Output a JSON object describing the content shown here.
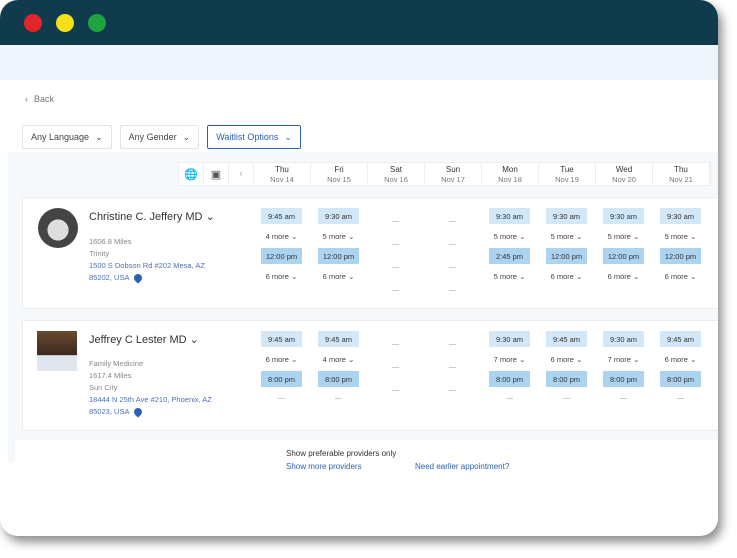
{
  "window": {
    "controls": [
      "#e0252b",
      "#f3e01a",
      "#1fa33f"
    ]
  },
  "nav": {
    "back": "Back"
  },
  "filters": [
    "Any Language",
    "Any Gender",
    "Waitlist Options"
  ],
  "days": [
    {
      "name": "Thu",
      "date": "Nov 14"
    },
    {
      "name": "Fri",
      "date": "Nov 15"
    },
    {
      "name": "Sat",
      "date": "Nov 16"
    },
    {
      "name": "Sun",
      "date": "Nov 17"
    },
    {
      "name": "Mon",
      "date": "Nov 18"
    },
    {
      "name": "Tue",
      "date": "Nov 19"
    },
    {
      "name": "Wed",
      "date": "Nov 20"
    },
    {
      "name": "Thu",
      "date": "Nov 21"
    }
  ],
  "providers": [
    {
      "name": "Christine C. Jeffery MD",
      "specialty": "",
      "distance": "1606.8 Miles",
      "location": "Trinity",
      "address1": "1500 S Dobson Rd #202 Mesa, AZ",
      "address2": "85202, USA",
      "slots": [
        [
          "9:45 am",
          "4 more",
          "12:00 pm",
          "6 more"
        ],
        [
          "9:30 am",
          "5 more",
          "12:00 pm",
          "6 more"
        ],
        null,
        null,
        [
          "9:30 am",
          "5 more",
          "2:45 pm",
          "5 more"
        ],
        [
          "9:30 am",
          "5 more",
          "12:00 pm",
          "6 more"
        ],
        [
          "9:30 am",
          "5 more",
          "12:00 pm",
          "6 more"
        ],
        [
          "9:30 am",
          "5 more",
          "12:00 pm",
          "6 more"
        ]
      ]
    },
    {
      "name": "Jeffrey C Lester MD",
      "specialty": "Family Medicine",
      "distance": "1617.4 Miles",
      "location": "Sun City",
      "address1": "18444 N 25th Ave #210, Phoenix, AZ",
      "address2": "85023, USA",
      "slots": [
        [
          "9:45 am",
          "6 more",
          "8:00 pm"
        ],
        [
          "9:45 am",
          "4 more",
          "8:00 pm"
        ],
        null,
        null,
        [
          "9:30 am",
          "7 more",
          "8:00 pm"
        ],
        [
          "9:45 am",
          "6 more",
          "8:00 pm"
        ],
        [
          "9:30 am",
          "7 more",
          "8:00 pm"
        ],
        [
          "9:45 am",
          "6 more",
          "8:00 pm"
        ]
      ]
    }
  ],
  "footer": {
    "preferable": "Show preferable providers only",
    "more": "Show more providers",
    "earlier": "Need earlier appointment?"
  }
}
